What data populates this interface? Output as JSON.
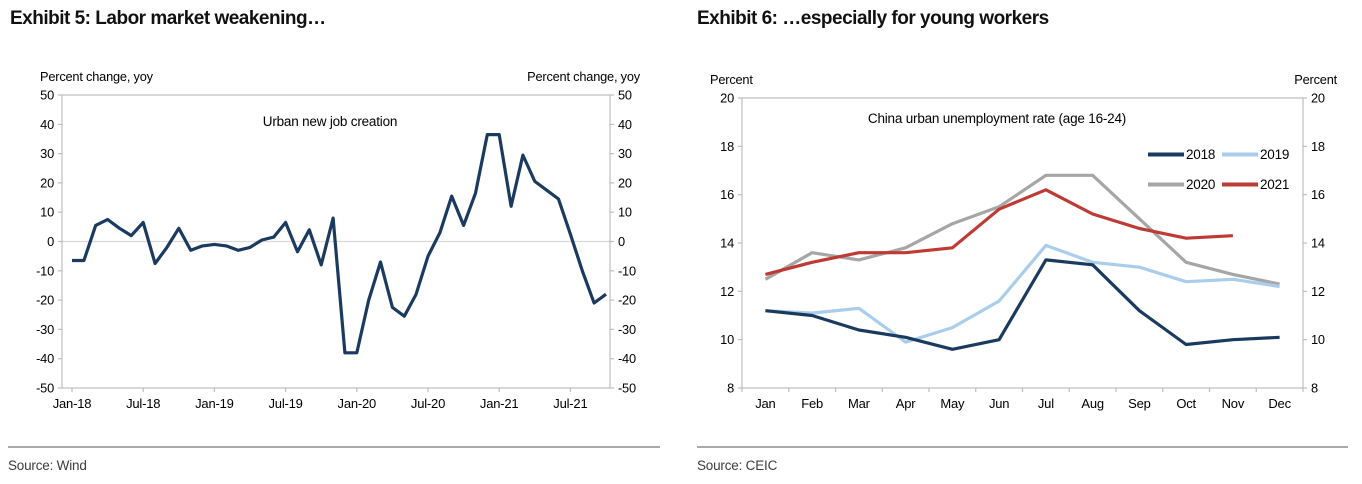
{
  "page": {
    "background": "#ffffff"
  },
  "left_panel": {
    "title": "Exhibit 5: Labor market weakening…",
    "source": "Source: Wind"
  },
  "right_panel": {
    "title": "Exhibit 6: …especially for young workers",
    "source": "Source: CEIC"
  },
  "colors": {
    "navy": "#1B3A5F",
    "light_blue": "#A9CDEB",
    "gray": "#A6A6A6",
    "red": "#BE3A34",
    "axis": "#bdbdbd",
    "zero_line": "#d9d9d9"
  },
  "chart_data": [
    {
      "type": "line",
      "inner_label": "Urban new job creation",
      "ylabel_left": "Percent change, yoy",
      "ylabel_right": "Percent change, yoy",
      "ylim": [
        -50,
        50
      ],
      "ytick_step": 10,
      "grid": "zero-line-only",
      "x_tick_mode": "on",
      "x_tick_labels": [
        "Jan-18",
        "Jul-18",
        "Jan-19",
        "Jul-19",
        "Jan-20",
        "Jul-20",
        "Jan-21",
        "Jul-21"
      ],
      "x_tick_indices": [
        0,
        6,
        12,
        18,
        24,
        30,
        36,
        42
      ],
      "x_months": "Jan-2018 through Oct-2021, monthly",
      "series": [
        {
          "name": "Urban new job creation",
          "color_key": "navy",
          "values": [
            -6.5,
            -6.5,
            5.5,
            7.5,
            4.5,
            2,
            6.5,
            -7.5,
            -2,
            4.5,
            -3,
            -1.5,
            -1,
            -1.5,
            -3,
            -2,
            0.5,
            1.5,
            6.5,
            -3.5,
            4,
            -8,
            8,
            -38,
            -38,
            -20,
            -7,
            -22.5,
            -25.5,
            -18,
            -5,
            3,
            15.5,
            5.5,
            16.5,
            36.5,
            36.5,
            12,
            29.5,
            20.5,
            17.5,
            14.5,
            2.5,
            -10,
            -21,
            -18
          ]
        }
      ]
    },
    {
      "type": "line",
      "inner_label": "China urban unemployment rate (age 16-24)",
      "ylabel_left": "Percent",
      "ylabel_right": "Percent",
      "ylim": [
        8,
        20
      ],
      "ytick_step": 2,
      "grid": "none",
      "x_tick_mode": "between",
      "x_tick_labels": [
        "Jan",
        "Feb",
        "Mar",
        "Apr",
        "May",
        "Jun",
        "Jul",
        "Aug",
        "Sep",
        "Oct",
        "Nov",
        "Dec"
      ],
      "legend": {
        "rows": [
          [
            "2018",
            "2019"
          ],
          [
            "2020",
            "2021"
          ]
        ],
        "position": "upper-right"
      },
      "series": [
        {
          "name": "2020",
          "color_key": "gray",
          "values": [
            12.5,
            13.6,
            13.3,
            13.8,
            14.8,
            15.5,
            16.8,
            16.8,
            15.0,
            13.2,
            12.7,
            12.3
          ]
        },
        {
          "name": "2019",
          "color_key": "light_blue",
          "values": [
            11.2,
            11.1,
            11.3,
            9.9,
            10.5,
            11.6,
            13.9,
            13.2,
            13.0,
            12.4,
            12.5,
            12.2
          ]
        },
        {
          "name": "2018",
          "color_key": "navy",
          "values": [
            11.2,
            11.0,
            10.4,
            10.1,
            9.6,
            10.0,
            13.3,
            13.1,
            11.2,
            9.8,
            10.0,
            10.1
          ]
        },
        {
          "name": "2021",
          "color_key": "red",
          "values": [
            12.7,
            13.2,
            13.6,
            13.6,
            13.8,
            15.4,
            16.2,
            15.2,
            14.6,
            14.2,
            14.3
          ]
        }
      ],
      "legend_order": [
        "2018",
        "2019",
        "2020",
        "2021"
      ]
    }
  ]
}
